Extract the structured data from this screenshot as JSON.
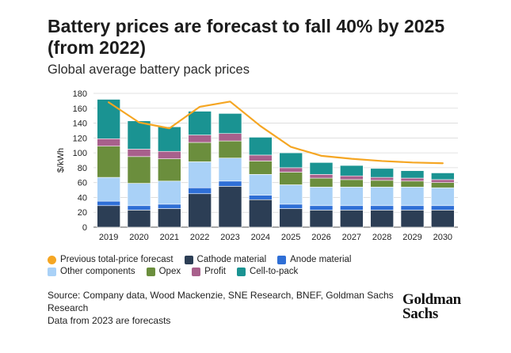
{
  "header": {
    "title": "Battery prices are forecast to fall 40% by 2025 (from 2022)",
    "subtitle": "Global average battery pack prices"
  },
  "chart_data": {
    "type": "bar",
    "stacked": true,
    "categories": [
      "2019",
      "2020",
      "2021",
      "2022",
      "2023",
      "2024",
      "2025",
      "2026",
      "2027",
      "2028",
      "2029",
      "2030"
    ],
    "ylabel": "$/kWh",
    "ylim": [
      0,
      180
    ],
    "yticks": [
      0,
      20,
      40,
      60,
      80,
      100,
      120,
      140,
      160,
      180
    ],
    "series": [
      {
        "name": "Cathode material",
        "color": "#2c3e55",
        "values": [
          29,
          23,
          25,
          45,
          55,
          37,
          25,
          23,
          23,
          23,
          23,
          23
        ]
      },
      {
        "name": "Anode material",
        "color": "#2f6fd6",
        "values": [
          6,
          6,
          6,
          8,
          7,
          6,
          6,
          6,
          6,
          6,
          6,
          6
        ]
      },
      {
        "name": "Other components",
        "color": "#a9d1f7",
        "values": [
          32,
          30,
          31,
          35,
          31,
          28,
          26,
          25,
          25,
          25,
          25,
          24
        ]
      },
      {
        "name": "Opex",
        "color": "#6b8e3d",
        "values": [
          42,
          36,
          30,
          26,
          23,
          18,
          17,
          12,
          10,
          9,
          8,
          7
        ]
      },
      {
        "name": "Profit",
        "color": "#a8608c",
        "values": [
          10,
          10,
          10,
          10,
          10,
          8,
          6,
          5,
          5,
          4,
          4,
          4
        ]
      },
      {
        "name": "Cell-to-pack",
        "color": "#1a9392",
        "values": [
          53,
          38,
          33,
          32,
          27,
          24,
          20,
          16,
          14,
          12,
          10,
          9
        ]
      }
    ],
    "line": {
      "name": "Previous total-price forecast",
      "color": "#f5a623",
      "values": [
        168,
        141,
        133,
        162,
        169,
        136,
        108,
        96,
        92,
        89,
        87,
        86
      ]
    }
  },
  "legend": [
    {
      "label": "Previous total-price forecast",
      "color": "#f5a623",
      "shape": "round"
    },
    {
      "label": "Cathode material",
      "color": "#2c3e55",
      "shape": "square"
    },
    {
      "label": "Anode material",
      "color": "#2f6fd6",
      "shape": "square"
    },
    {
      "label": "Other components",
      "color": "#a9d1f7",
      "shape": "square"
    },
    {
      "label": "Opex",
      "color": "#6b8e3d",
      "shape": "square"
    },
    {
      "label": "Profit",
      "color": "#a8608c",
      "shape": "square"
    },
    {
      "label": "Cell-to-pack",
      "color": "#1a9392",
      "shape": "square"
    }
  ],
  "footer": {
    "source": "Source: Company data, Wood Mackenzie, SNE Research, BNEF, Goldman Sachs Research",
    "note": "Data from 2023 are forecasts",
    "logo_line1": "Goldman",
    "logo_line2": "Sachs"
  }
}
